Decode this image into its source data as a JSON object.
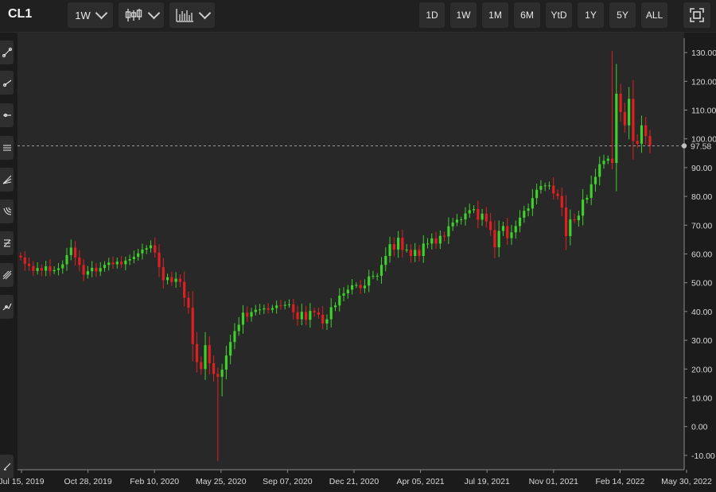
{
  "toolbar": {
    "symbol": "CL1",
    "interval_label": "1W",
    "chart_style_icon": "candlestick-icon",
    "indicators_icon": "bar-chart-icon",
    "ranges": [
      "1D",
      "1W",
      "1M",
      "6M",
      "YtD",
      "1Y",
      "5Y",
      "ALL"
    ],
    "expand_icon": "fullscreen-icon"
  },
  "drawing_tools": [
    "trend-line-icon",
    "ray-icon",
    "horizontal-line-icon",
    "parallel-channel-icon",
    "fib-fan-icon",
    "fib-arc-icon",
    "fib-retracement-icon",
    "pitchfork-icon",
    "path-icon",
    "edit-icon"
  ],
  "colors": {
    "up": "#3ed12b",
    "down": "#e02020",
    "background": "#272827",
    "grid": "#3a3a3a",
    "axis_text": "#d9d9d9"
  },
  "chart_data": {
    "type": "candlestick",
    "title": "",
    "xlabel": "",
    "ylabel": "",
    "ylim": [
      -15,
      135
    ],
    "y_ticks": [
      -10,
      0,
      10,
      20,
      30,
      40,
      50,
      60,
      70,
      80,
      90,
      100,
      110,
      120,
      130
    ],
    "y_tick_labels": [
      "-10.00",
      "0.00",
      "10.00",
      "20.00",
      "30.00",
      "40.00",
      "50.00",
      "60.00",
      "70.00",
      "80.00",
      "90.00",
      "100.00",
      "110.00",
      "120.00",
      "130.00"
    ],
    "x_tick_labels": [
      "Jul 15, 2019",
      "Oct 28, 2019",
      "Feb 10, 2020",
      "May 25, 2020",
      "Sep 07, 2020",
      "Dec 21, 2020",
      "Apr 05, 2021",
      "Jul 19, 2021",
      "Nov 01, 2021",
      "Feb 14, 2022",
      "May 30, 2022"
    ],
    "last_price": 97.58,
    "last_price_label": "97.58",
    "closes": [
      58.8,
      56.6,
      55.8,
      54.1,
      55.1,
      54.2,
      55.7,
      54.0,
      54.4,
      55.0,
      56.4,
      59.6,
      62.2,
      58.8,
      56.2,
      52.8,
      54.0,
      55.2,
      53.9,
      55.1,
      56.2,
      57.0,
      56.4,
      57.3,
      56.4,
      57.7,
      58.2,
      59.0,
      60.2,
      61.5,
      62.0,
      63.0,
      60.5,
      55.4,
      50.9,
      51.9,
      50.3,
      51.4,
      50.3,
      44.8,
      41.3,
      28.7,
      22.4,
      20.0,
      28.3,
      22.0,
      18.3,
      17.3,
      19.8,
      24.7,
      29.4,
      33.2,
      35.4,
      39.6,
      38.2,
      39.8,
      40.6,
      40.7,
      41.1,
      40.6,
      41.2,
      42.1,
      42.0,
      42.3,
      42.5,
      39.8,
      37.3,
      39.9,
      37.1,
      40.2,
      39.7,
      38.9,
      35.8,
      37.3,
      41.5,
      42.1,
      45.5,
      46.3,
      47.6,
      49.1,
      49.2,
      48.1,
      49.0,
      52.2,
      52.4,
      52.4,
      56.2,
      59.3,
      63.4,
      61.5,
      65.6,
      61.4,
      61.5,
      59.3,
      61.4,
      59.3,
      63.6,
      63.6,
      65.4,
      63.6,
      66.3,
      66.1,
      69.6,
      70.9,
      71.9,
      72.0,
      74.1,
      75.2,
      75.6,
      71.9,
      74.0,
      71.3,
      68.3,
      62.3,
      68.0,
      69.7,
      65.5,
      67.5,
      69.7,
      72.6,
      75.0,
      75.8,
      79.4,
      82.3,
      83.6,
      83.8,
      83.8,
      81.0,
      80.1,
      76.1,
      66.2,
      72.0,
      71.7,
      73.3,
      78.9,
      79.5,
      84.2,
      86.8,
      91.2,
      92.4,
      93.1,
      91.6,
      115.7,
      109.3,
      104.7,
      113.9,
      99.3,
      98.3,
      104.7,
      101.0,
      97.58
    ]
  }
}
